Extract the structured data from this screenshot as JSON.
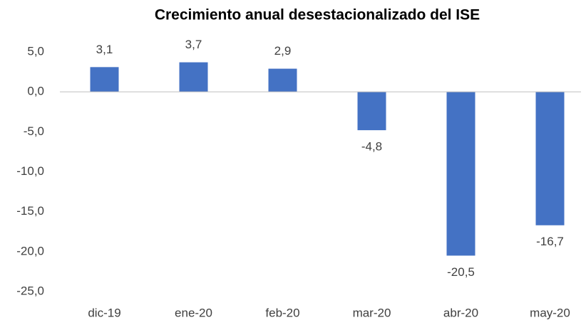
{
  "chart_data": {
    "type": "bar",
    "title": "Crecimiento anual desestacionalizado del ISE",
    "categories": [
      "dic-19",
      "ene-20",
      "feb-20",
      "mar-20",
      "abr-20",
      "may-20"
    ],
    "values": [
      3.1,
      3.7,
      2.9,
      -4.8,
      -20.5,
      -16.7
    ],
    "value_labels": [
      "3,1",
      "3,7",
      "2,9",
      "-4,8",
      "-20,5",
      "-16,7"
    ],
    "color": "#4472c4",
    "ylim": [
      -25,
      5
    ],
    "yticks": [
      {
        "value": 5,
        "label": "5,0"
      },
      {
        "value": 0,
        "label": "0,0"
      },
      {
        "value": -5,
        "label": "-5,0"
      },
      {
        "value": -10,
        "label": "-10,0"
      },
      {
        "value": -15,
        "label": "-15,0"
      },
      {
        "value": -20,
        "label": "-20,0"
      },
      {
        "value": -25,
        "label": "-25,0"
      }
    ],
    "grid": false
  }
}
